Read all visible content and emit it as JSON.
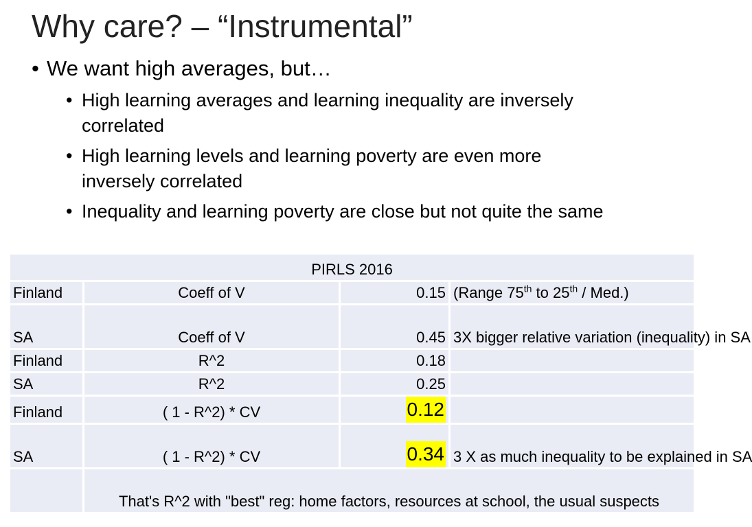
{
  "slide": {
    "title": "Why care? – “Instrumental”",
    "bullet_main": "We want high averages, but…",
    "sub_bullets": [
      "High learning averages and learning inequality are inversely correlated",
      "High learning levels and learning poverty are even more inversely correlated",
      "Inequality and learning poverty are close but not quite the same"
    ],
    "bullet_glyph": "•"
  },
  "table": {
    "header": "PIRLS 2016",
    "rows": [
      {
        "country": "Finland",
        "measure": "Coeff of V",
        "value": "0.15",
        "note": ""
      },
      {
        "country": "SA",
        "measure": "Coeff of V",
        "value": "0.45",
        "note": "3X bigger relative variation (inequality) in SA"
      },
      {
        "country": "Finland",
        "measure": "R^2",
        "value": "0.18",
        "note": ""
      },
      {
        "country": "SA",
        "measure": "R^2",
        "value": "0.25",
        "note": ""
      },
      {
        "country": "Finland",
        "measure": "( 1 - R^2) * CV",
        "value": "0.12",
        "note": ""
      },
      {
        "country": "SA",
        "measure": "( 1 - R^2) * CV",
        "value": "0.34",
        "note": "3 X as much inequality to be explained in SA"
      }
    ],
    "range_note": {
      "part1": "(Range 75",
      "sup1": "th",
      "part2": " to 25",
      "sup2": "th",
      "part3": " / Med.)"
    },
    "footer": "That's R^2 with \"best\" reg: home factors, resources at school, the usual suspects",
    "highlight_color": "#ffff00"
  }
}
